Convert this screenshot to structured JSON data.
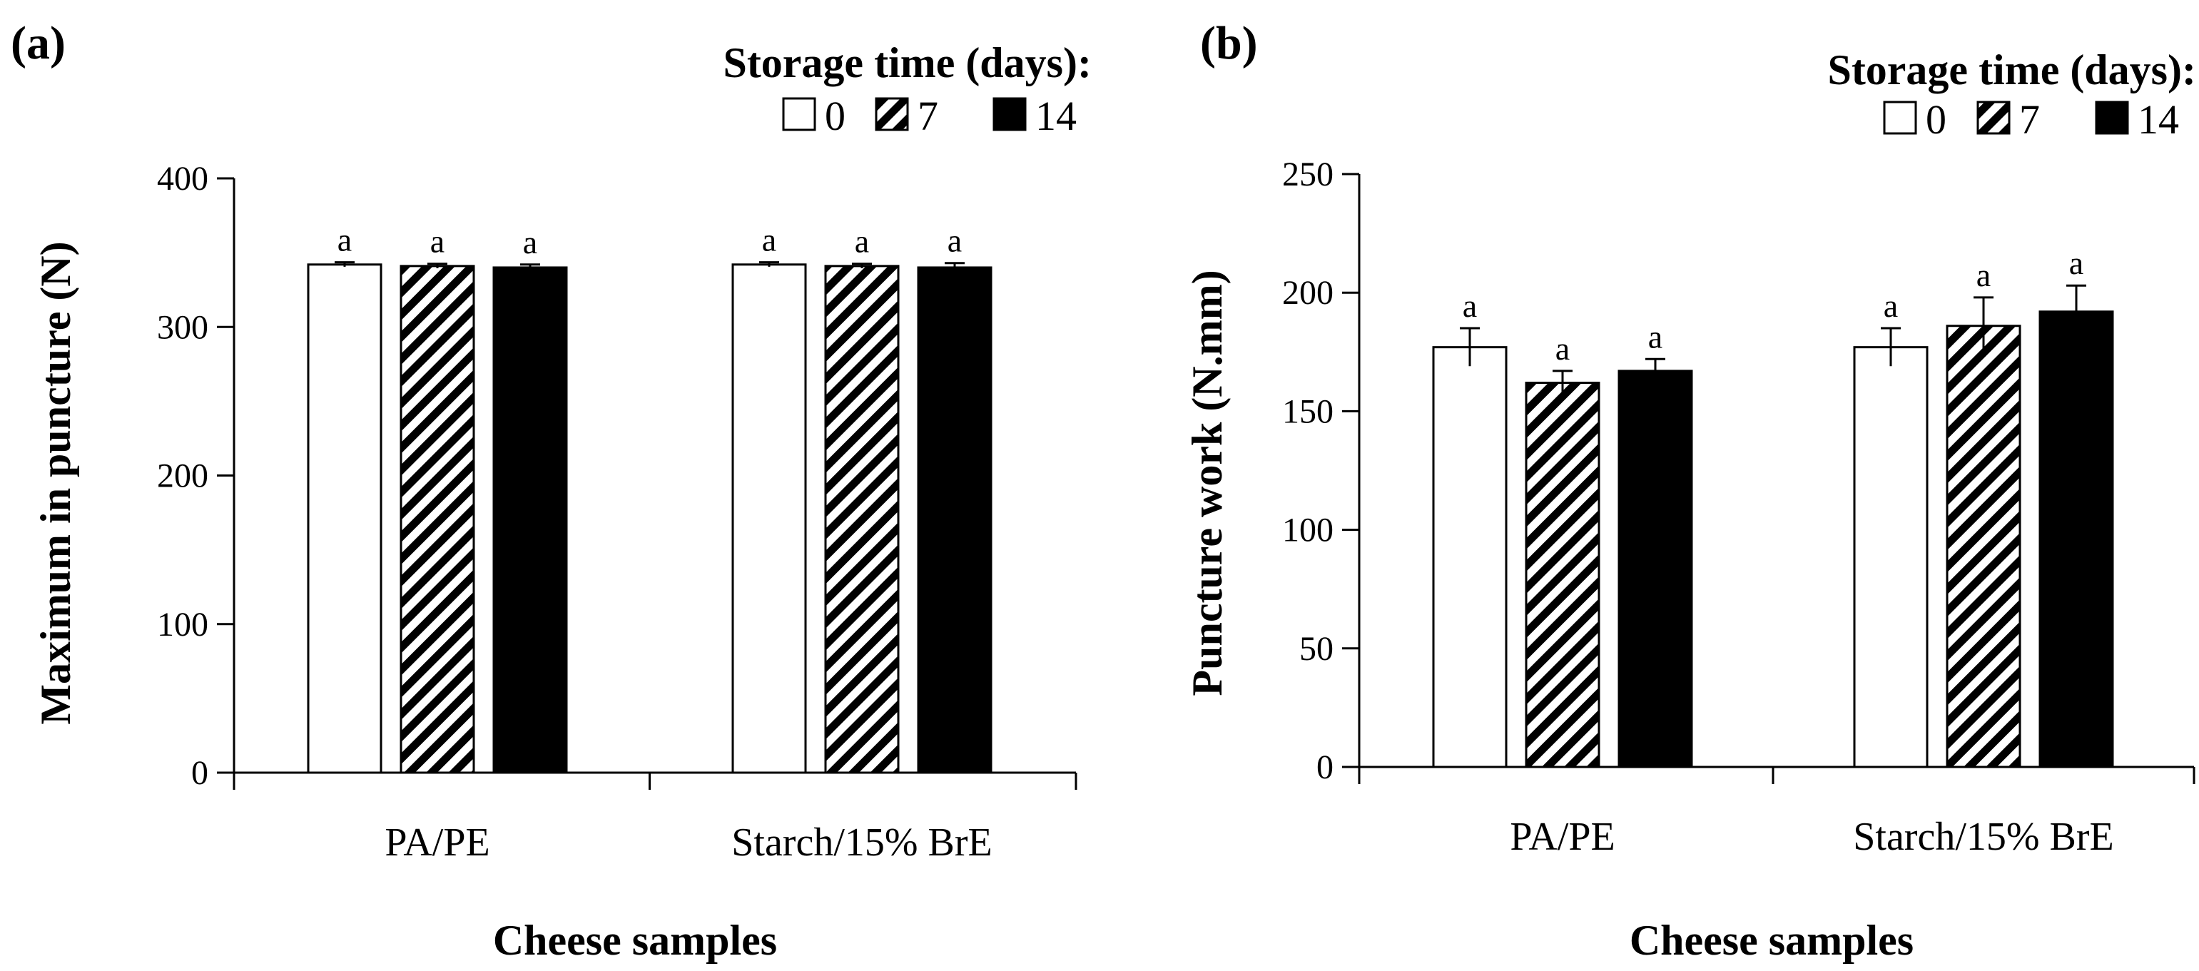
{
  "legend": {
    "title": "Storage time (days):",
    "items": [
      "0",
      "7",
      "14"
    ]
  },
  "chart_data": [
    {
      "panel": "(a)",
      "type": "bar",
      "title": "",
      "xlabel": "Cheese samples",
      "ylabel": "Maximum in puncture (N)",
      "ylim": [
        0,
        400
      ],
      "yticks": [
        0,
        100,
        200,
        300,
        400
      ],
      "categories": [
        "PA/PE",
        "Starch/15% BrE"
      ],
      "series": [
        {
          "name": "0",
          "values": [
            342,
            342
          ],
          "errors": [
            1.5,
            1.5
          ],
          "labels": [
            "a",
            "a"
          ]
        },
        {
          "name": "7",
          "values": [
            341,
            341
          ],
          "errors": [
            1.5,
            1.5
          ],
          "labels": [
            "a",
            "a"
          ]
        },
        {
          "name": "14",
          "values": [
            340,
            340
          ],
          "errors": [
            2,
            3
          ],
          "labels": [
            "a",
            "a"
          ]
        }
      ],
      "legend_position": "top-right",
      "grid": false
    },
    {
      "panel": "(b)",
      "type": "bar",
      "title": "",
      "xlabel": "Cheese samples",
      "ylabel": "Puncture work (N.mm)",
      "ylim": [
        0,
        250
      ],
      "yticks": [
        0,
        50,
        100,
        150,
        200,
        250
      ],
      "categories": [
        "PA/PE",
        "Starch/15% BrE"
      ],
      "series": [
        {
          "name": "0",
          "values": [
            177,
            177
          ],
          "errors": [
            8,
            8
          ],
          "labels": [
            "a",
            "a"
          ]
        },
        {
          "name": "7",
          "values": [
            162,
            186
          ],
          "errors": [
            5,
            12
          ],
          "labels": [
            "a",
            "a"
          ]
        },
        {
          "name": "14",
          "values": [
            167,
            192
          ],
          "errors": [
            5,
            11
          ],
          "labels": [
            "a",
            "a"
          ]
        }
      ],
      "legend_position": "top-right",
      "grid": false
    }
  ]
}
